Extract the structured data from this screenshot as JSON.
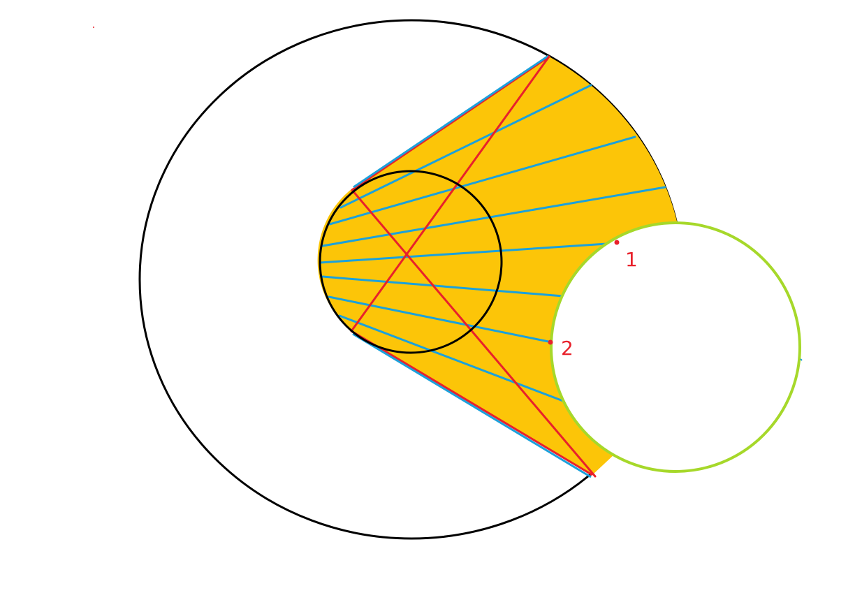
{
  "diagram": {
    "title": "",
    "colors": {
      "background": "#ffffff",
      "outline": "#000000",
      "fill": "#fcc508",
      "ray": "#1ba1dc",
      "construction": "#e8212b",
      "obstacle": "#a6d82a",
      "label": "#e8212b"
    },
    "labels": {
      "point_1": "1",
      "point_2": "2"
    },
    "ray_count": 10,
    "shapes": [
      "outer-circle",
      "inner-circle",
      "light-region",
      "obstacle-circle",
      "construction-lines",
      "ray-fan"
    ]
  }
}
